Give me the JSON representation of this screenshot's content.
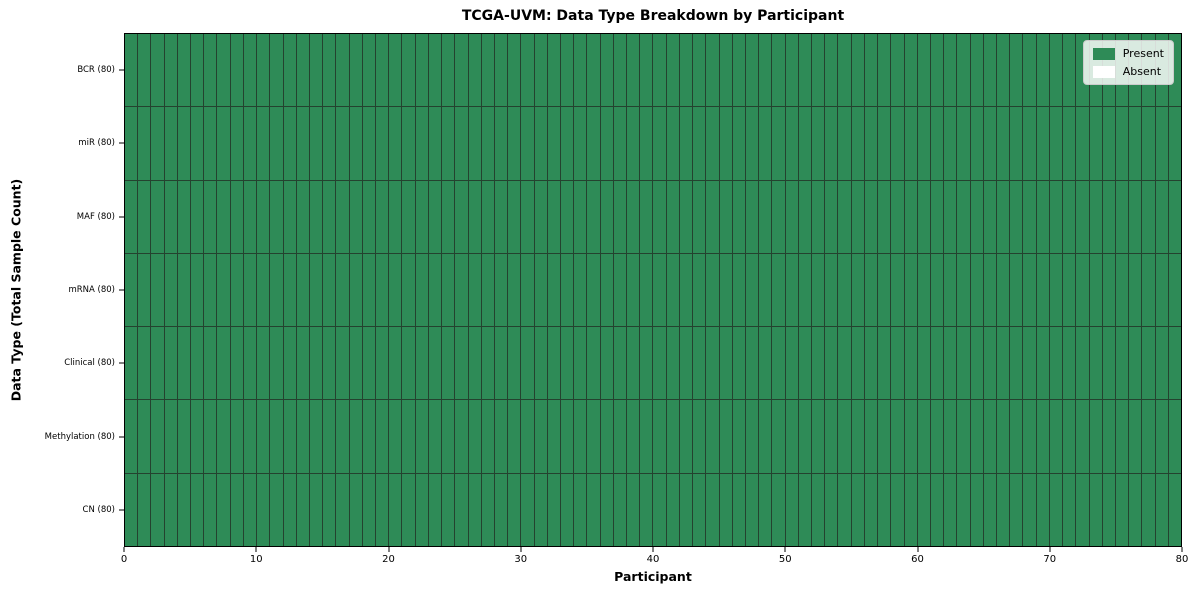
{
  "chart_data": {
    "type": "heatmap",
    "title": "TCGA-UVM: Data Type Breakdown by Participant",
    "xlabel": "Participant",
    "ylabel": "Data Type (Total Sample Count)",
    "x_range": [
      0,
      80
    ],
    "xticks": [
      0,
      10,
      20,
      30,
      40,
      50,
      60,
      70,
      80
    ],
    "n_participants": 80,
    "rows": [
      {
        "label": "BCR (80)",
        "data_type": "BCR",
        "total_samples": 80,
        "present_count": 80,
        "absent_count": 0
      },
      {
        "label": "miR (80)",
        "data_type": "miR",
        "total_samples": 80,
        "present_count": 80,
        "absent_count": 0
      },
      {
        "label": "MAF (80)",
        "data_type": "MAF",
        "total_samples": 80,
        "present_count": 80,
        "absent_count": 0
      },
      {
        "label": "mRNA (80)",
        "data_type": "mRNA",
        "total_samples": 80,
        "present_count": 80,
        "absent_count": 0
      },
      {
        "label": "Clinical (80)",
        "data_type": "Clinical",
        "total_samples": 80,
        "present_count": 80,
        "absent_count": 0
      },
      {
        "label": "Methylation (80)",
        "data_type": "Methylation",
        "total_samples": 80,
        "present_count": 80,
        "absent_count": 0
      },
      {
        "label": "CN (80)",
        "data_type": "CN",
        "total_samples": 80,
        "present_count": 80,
        "absent_count": 0
      }
    ],
    "cell_values_note": "all 560 cells (7 rows x 80 participants) are Present",
    "legend": {
      "position": "upper right",
      "entries": [
        {
          "label": "Present",
          "color": "#2e8b57"
        },
        {
          "label": "Absent",
          "color": "#ffffff"
        }
      ]
    },
    "colors": {
      "present": "#2e8b57",
      "absent": "#ffffff",
      "cell_border": "#24422f",
      "axes_border": "#000000"
    },
    "grid": false
  }
}
